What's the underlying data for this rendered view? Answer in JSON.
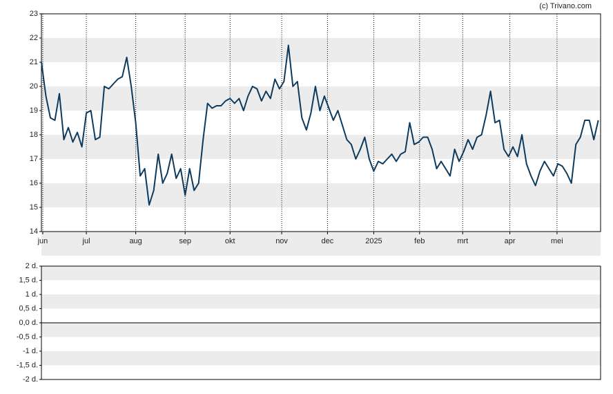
{
  "chart_data": [
    {
      "type": "line",
      "source": "(c) Trivano.com",
      "color": "#0d3a5c",
      "values": [
        21.0,
        19.6,
        18.7,
        18.6,
        19.7,
        17.8,
        18.3,
        17.7,
        18.1,
        17.5,
        18.9,
        19.0,
        17.8,
        17.9,
        20.0,
        19.9,
        20.1,
        20.3,
        20.4,
        21.2,
        20.0,
        18.5,
        16.3,
        16.6,
        15.1,
        15.7,
        17.2,
        16.0,
        16.4,
        17.2,
        16.2,
        16.6,
        15.5,
        16.6,
        15.7,
        16.0,
        17.8,
        19.3,
        19.1,
        19.2,
        19.2,
        19.4,
        19.5,
        19.3,
        19.5,
        19.0,
        19.6,
        20.0,
        19.9,
        19.4,
        19.8,
        19.5,
        20.3,
        19.9,
        20.2,
        21.7,
        20.0,
        20.2,
        18.7,
        18.2,
        18.9,
        20.0,
        19.0,
        19.6,
        19.1,
        18.6,
        19.0,
        18.4,
        17.8,
        17.6,
        17.0,
        17.4,
        17.9,
        17.0,
        16.5,
        16.9,
        16.8,
        17.0,
        17.2,
        16.9,
        17.2,
        17.3,
        18.5,
        17.6,
        17.7,
        17.9,
        17.9,
        17.4,
        16.6,
        16.9,
        16.6,
        16.3,
        17.4,
        16.9,
        17.3,
        17.8,
        17.4,
        17.9,
        18.0,
        18.8,
        19.8,
        18.5,
        18.6,
        17.4,
        17.1,
        17.5,
        17.1,
        18.0,
        16.8,
        16.3,
        15.9,
        16.5,
        16.9,
        16.6,
        16.3,
        16.8,
        16.7,
        16.4,
        16.0,
        17.6,
        17.9,
        18.6,
        18.6,
        17.8,
        18.6
      ],
      "xlim": [
        0,
        124.5
      ],
      "xticks": [
        {
          "value": 0.3,
          "label": "jun"
        },
        {
          "value": 10,
          "label": "jul"
        },
        {
          "value": 21,
          "label": "aug"
        },
        {
          "value": 32,
          "label": "sep"
        },
        {
          "value": 42,
          "label": "okt"
        },
        {
          "value": 53.5,
          "label": "nov"
        },
        {
          "value": 63.7,
          "label": "dec"
        },
        {
          "value": 74,
          "label": "2025"
        },
        {
          "value": 84.2,
          "label": "feb"
        },
        {
          "value": 93.8,
          "label": "mrt"
        },
        {
          "value": 104.3,
          "label": "apr"
        },
        {
          "value": 114.8,
          "label": "mei"
        }
      ],
      "ylim": [
        14,
        23
      ],
      "yticks": [
        14,
        15,
        16,
        17,
        18,
        19,
        20,
        21,
        22,
        23
      ],
      "grid": true
    },
    {
      "type": "line",
      "ylim": [
        -2,
        2
      ],
      "yticks": [
        {
          "value": 2,
          "label": "2 d."
        },
        {
          "value": 1.5,
          "label": "1,5 d."
        },
        {
          "value": 1,
          "label": "1 d."
        },
        {
          "value": 0.5,
          "label": "0,5 d."
        },
        {
          "value": 0,
          "label": "0,0 d."
        },
        {
          "value": -0.5,
          "label": "-0,5 d."
        },
        {
          "value": -1,
          "label": "-1 d."
        },
        {
          "value": -1.5,
          "label": "-1,5 d."
        },
        {
          "value": -2,
          "label": "-2 d."
        }
      ]
    }
  ]
}
